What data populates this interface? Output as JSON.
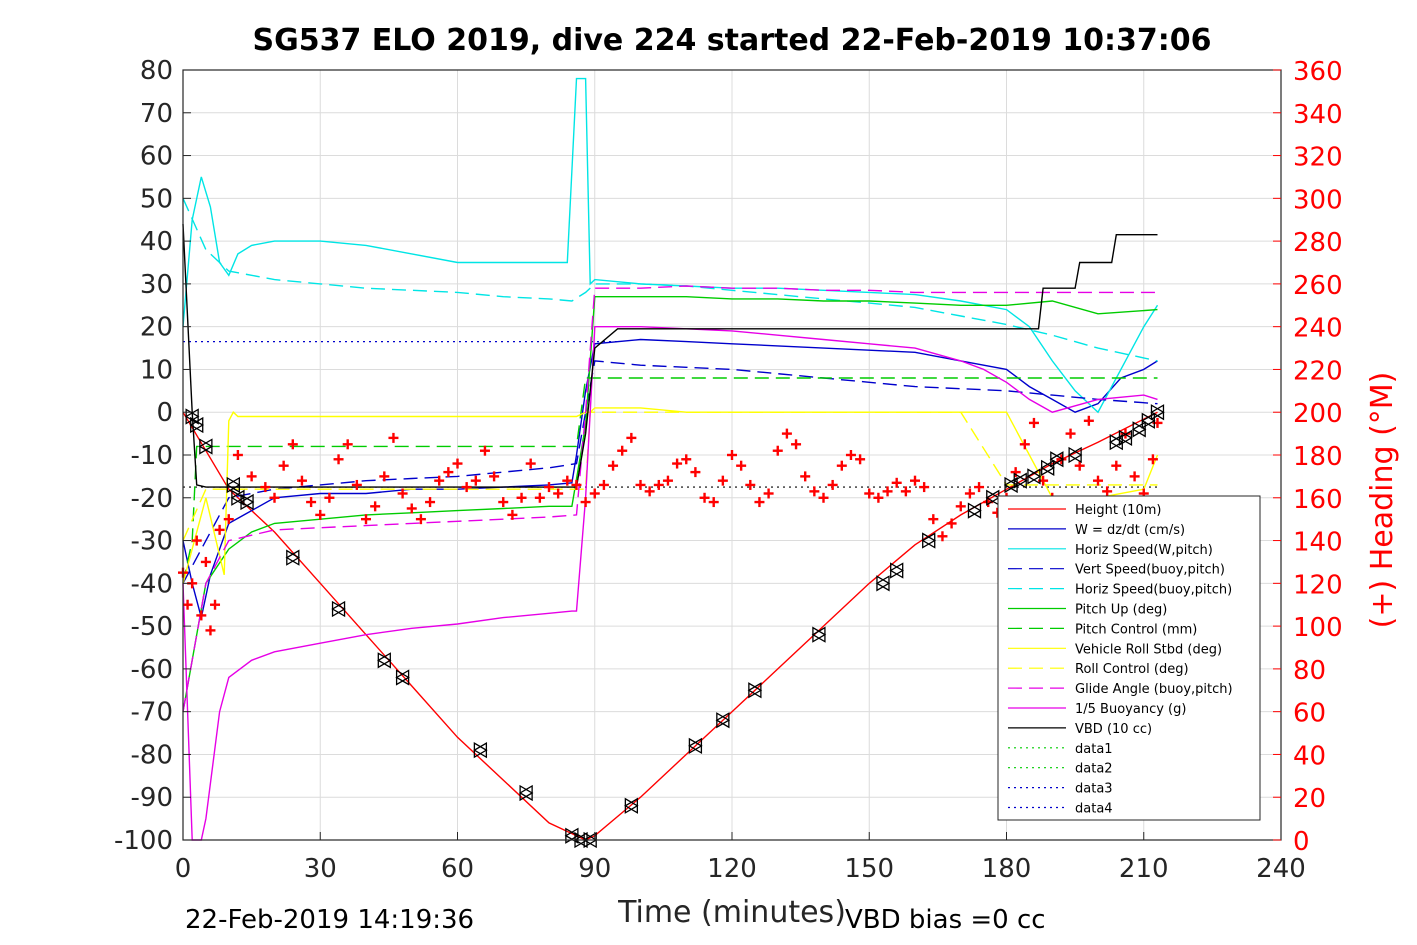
{
  "chart_data": {
    "type": "line",
    "title": "SG537 ELO 2019, dive 224 started 22-Feb-2019 10:37:06",
    "xlabel": "Time (minutes)",
    "ylabel": "",
    "ylabel_right": "(+) Heading (°M)",
    "xlim": [
      0,
      240
    ],
    "ylim": [
      -100,
      80
    ],
    "ylim_right": [
      0,
      360
    ],
    "x_ticks": [
      0,
      30,
      60,
      90,
      120,
      150,
      180,
      210,
      240
    ],
    "y_ticks": [
      80,
      70,
      60,
      50,
      40,
      30,
      20,
      10,
      0,
      -10,
      -20,
      -30,
      -40,
      -50,
      -60,
      -70,
      -80,
      -90,
      -100
    ],
    "y_ticks_right": [
      360,
      340,
      320,
      300,
      280,
      260,
      240,
      220,
      200,
      180,
      160,
      140,
      120,
      100,
      80,
      60,
      40,
      20,
      0
    ],
    "grid": true,
    "legend_position": "bottom-right",
    "footer_left": "22-Feb-2019 14:19:36",
    "footer_right": "VBD bias =0 cc",
    "series": [
      {
        "name": "Height (10m)",
        "color": "#ff0000",
        "dash": "solid",
        "x": [
          0,
          10,
          20,
          30,
          40,
          50,
          60,
          70,
          80,
          86,
          88,
          90,
          100,
          110,
          120,
          130,
          140,
          150,
          160,
          170,
          180,
          190,
          200,
          213
        ],
        "y": [
          0,
          -18,
          -28,
          -40,
          -52,
          -64,
          -76,
          -86,
          -96,
          -99,
          -100,
          -99,
          -90,
          -80,
          -70,
          -60,
          -50,
          -40,
          -31,
          -24,
          -18,
          -12,
          -7,
          0
        ]
      },
      {
        "name": "W = dz/dt (cm/s)",
        "color": "#0000cc",
        "dash": "solid",
        "x": [
          0,
          2,
          4,
          6,
          10,
          15,
          20,
          30,
          40,
          50,
          60,
          70,
          80,
          85,
          86,
          88,
          90,
          100,
          110,
          120,
          130,
          140,
          150,
          160,
          170,
          180,
          185,
          190,
          195,
          200,
          205,
          210,
          213
        ],
        "y": [
          -30,
          -40,
          -48,
          -38,
          -26,
          -23,
          -20,
          -19,
          -19,
          -18,
          -18,
          -17.5,
          -17,
          -16.5,
          -10,
          5,
          16,
          17,
          16.5,
          16,
          15.5,
          15,
          14.5,
          14,
          12,
          10,
          6,
          3,
          0,
          2,
          8,
          10,
          12
        ]
      },
      {
        "name": "Horiz Speed(W,pitch)",
        "color": "#00e5e5",
        "dash": "solid",
        "x": [
          0,
          2,
          4,
          6,
          8,
          10,
          12,
          15,
          20,
          30,
          40,
          50,
          60,
          70,
          80,
          84,
          86,
          88,
          89,
          90,
          100,
          110,
          120,
          130,
          140,
          150,
          160,
          170,
          180,
          185,
          190,
          195,
          200,
          205,
          210,
          213
        ],
        "y": [
          20,
          45,
          55,
          48,
          35,
          32,
          37,
          39,
          40,
          40,
          39,
          37,
          35,
          35,
          35,
          35,
          78,
          78,
          30,
          31,
          30,
          29.5,
          29,
          29,
          28.5,
          28,
          27.5,
          26,
          24,
          20,
          12,
          5,
          0,
          10,
          20,
          25
        ]
      },
      {
        "name": "Vert Speed(buoy,pitch)",
        "color": "#0000cc",
        "dash": "dash",
        "x": [
          0,
          10,
          20,
          30,
          40,
          50,
          60,
          70,
          80,
          86,
          88,
          90,
          100,
          110,
          120,
          130,
          140,
          150,
          160,
          170,
          180,
          190,
          200,
          213
        ],
        "y": [
          -40,
          -20,
          -18,
          -17,
          -16,
          -15.5,
          -15,
          -14,
          -13,
          -12,
          0,
          12,
          11,
          10.5,
          10,
          9,
          8,
          7,
          6,
          5.5,
          5,
          4,
          3,
          2
        ]
      },
      {
        "name": "Horiz Speed(buoy,pitch)",
        "color": "#00e5e5",
        "dash": "dash",
        "x": [
          0,
          5,
          10,
          15,
          20,
          30,
          40,
          50,
          60,
          70,
          80,
          85,
          88,
          90,
          100,
          110,
          120,
          130,
          140,
          150,
          160,
          170,
          180,
          190,
          200,
          213
        ],
        "y": [
          50,
          38,
          33,
          32,
          31,
          30,
          29,
          28.5,
          28,
          27,
          26.5,
          26,
          28,
          30,
          30,
          29.5,
          28.5,
          27.5,
          26.5,
          25.5,
          24.5,
          22.5,
          20.5,
          18,
          15,
          12
        ]
      },
      {
        "name": "Pitch Up (deg)",
        "color": "#00cc00",
        "dash": "solid",
        "x": [
          0,
          5,
          10,
          15,
          20,
          30,
          40,
          50,
          60,
          70,
          80,
          85,
          88,
          90,
          100,
          110,
          120,
          130,
          140,
          150,
          160,
          170,
          180,
          190,
          200,
          213
        ],
        "y": [
          -70,
          -40,
          -32,
          -28,
          -26,
          -25,
          -24,
          -23.5,
          -23,
          -22.5,
          -22,
          -22,
          -3,
          27,
          27,
          27,
          26.5,
          26.5,
          26,
          26,
          25.5,
          25,
          25,
          26,
          23,
          24
        ]
      },
      {
        "name": "Pitch Control (mm)",
        "color": "#00cc00",
        "dash": "dash",
        "x": [
          0,
          2,
          3,
          5,
          85,
          86,
          88,
          89,
          90,
          213
        ],
        "y": [
          -40,
          -30,
          -8,
          -8,
          -8,
          -8,
          8,
          8,
          8,
          8
        ]
      },
      {
        "name": "Vehicle Roll Stbd (deg)",
        "color": "#ffff00",
        "dash": "solid",
        "x": [
          0,
          5,
          9,
          10,
          11,
          12,
          20,
          30,
          40,
          50,
          60,
          70,
          80,
          86,
          88,
          89,
          90,
          100,
          110,
          120,
          130,
          140,
          150,
          160,
          170,
          180,
          190,
          200,
          210,
          213
        ],
        "y": [
          -40,
          -20,
          -38,
          -2,
          0,
          -1,
          -1,
          -1,
          -1,
          -1,
          -1,
          -1,
          -1,
          -1,
          0,
          0,
          1,
          1,
          0,
          0,
          0,
          0,
          0,
          0,
          0,
          0,
          -20,
          -20,
          -18,
          -10
        ]
      },
      {
        "name": "Roll Control (deg)",
        "color": "#ffff00",
        "dash": "dash",
        "x": [
          0,
          5,
          10,
          20,
          30,
          40,
          50,
          60,
          70,
          80,
          86,
          88,
          89,
          90,
          100,
          110,
          120,
          130,
          140,
          150,
          160,
          170,
          180,
          190,
          200,
          213
        ],
        "y": [
          -30,
          -18,
          -18,
          -18,
          -18,
          -18,
          -18,
          -18,
          -18,
          -18,
          -18,
          -18,
          0,
          0,
          0,
          0,
          0,
          0,
          0,
          0,
          0,
          0,
          -17,
          -17,
          -17,
          -17
        ]
      },
      {
        "name": "Glide Angle (buoy,pitch)",
        "color": "#e600e6",
        "dash": "dash",
        "x": [
          0,
          5,
          10,
          20,
          30,
          40,
          50,
          60,
          70,
          80,
          86,
          88,
          90,
          100,
          110,
          120,
          130,
          140,
          150,
          160,
          170,
          180,
          190,
          200,
          213
        ],
        "y": [
          -70,
          -40,
          -30,
          -27.5,
          -27,
          -26.5,
          -26,
          -25.5,
          -25,
          -24.5,
          -24,
          0,
          29,
          29,
          29.5,
          29,
          29,
          28.5,
          28.5,
          28,
          28,
          28,
          28,
          28,
          28
        ]
      },
      {
        "name": "1/5 Buoyancy (g)",
        "color": "#e600e6",
        "dash": "solid",
        "x": [
          0,
          2,
          4,
          5,
          8,
          10,
          15,
          20,
          30,
          40,
          50,
          60,
          70,
          80,
          85,
          86,
          88,
          90,
          100,
          110,
          120,
          130,
          140,
          150,
          160,
          170,
          175,
          180,
          185,
          190,
          200,
          210,
          213
        ],
        "y": [
          -40,
          -100,
          -100,
          -95,
          -70,
          -62,
          -58,
          -56,
          -54,
          -52,
          -50.5,
          -49.5,
          -48,
          -47,
          -46.5,
          -46.5,
          -20,
          20,
          20,
          19.5,
          19,
          18,
          17,
          16,
          15,
          12,
          10,
          7,
          3,
          0,
          3,
          4,
          3
        ]
      },
      {
        "name": "VBD (10 cc)",
        "color": "#000000",
        "dash": "solid",
        "x": [
          0,
          2,
          3,
          5,
          86,
          88,
          90,
          95,
          100,
          180,
          187,
          188,
          195,
          196,
          203,
          204,
          213
        ],
        "y": [
          44,
          0,
          -17,
          -17.5,
          -17.5,
          -5,
          15,
          19.5,
          19.5,
          19.5,
          19.5,
          29,
          29,
          35,
          35,
          41.5,
          41.5
        ]
      },
      {
        "name": "data1",
        "color": "#00cc00",
        "dash": "dot",
        "x": [],
        "y": []
      },
      {
        "name": "data2",
        "color": "#00cc00",
        "dash": "dot",
        "x": [],
        "y": []
      },
      {
        "name": "data3",
        "color": "#0000cc",
        "dash": "dot",
        "x": [],
        "y": []
      },
      {
        "name": "data4",
        "color": "#0000cc",
        "dash": "dot",
        "x": [],
        "y": []
      }
    ],
    "reference_lines": [
      {
        "color": "#0000cc",
        "dash": "dot",
        "y": 16.5,
        "x": [
          0,
          95
        ]
      },
      {
        "color": "#000000",
        "dash": "dot",
        "y": -17.5,
        "x": [
          0,
          213
        ]
      }
    ],
    "heading": {
      "color": "#ff0000",
      "marker": "+",
      "axis": "right",
      "x": [
        0,
        1,
        2,
        3,
        4,
        5,
        6,
        7,
        8,
        10,
        12,
        15,
        18,
        20,
        22,
        24,
        26,
        28,
        30,
        32,
        34,
        36,
        38,
        40,
        42,
        44,
        46,
        48,
        50,
        52,
        54,
        56,
        58,
        60,
        62,
        64,
        66,
        68,
        70,
        72,
        74,
        76,
        78,
        80,
        82,
        84,
        86,
        88,
        90,
        92,
        94,
        96,
        98,
        100,
        102,
        104,
        106,
        108,
        110,
        112,
        114,
        116,
        118,
        120,
        122,
        124,
        126,
        128,
        130,
        132,
        134,
        136,
        138,
        140,
        142,
        144,
        146,
        148,
        150,
        152,
        154,
        156,
        158,
        160,
        162,
        164,
        166,
        168,
        170,
        172,
        174,
        176,
        178,
        180,
        182,
        184,
        186,
        188,
        190,
        192,
        194,
        196,
        198,
        200,
        202,
        204,
        206,
        208,
        210,
        212,
        213
      ],
      "y": [
        125,
        110,
        120,
        140,
        105,
        130,
        98,
        110,
        145,
        150,
        180,
        170,
        165,
        160,
        175,
        185,
        168,
        158,
        152,
        160,
        178,
        185,
        166,
        150,
        156,
        170,
        188,
        162,
        155,
        150,
        158,
        168,
        172,
        176,
        165,
        168,
        182,
        170,
        158,
        152,
        160,
        176,
        160,
        165,
        162,
        168,
        166,
        158,
        162,
        166,
        175,
        182,
        188,
        166,
        163,
        166,
        168,
        176,
        178,
        172,
        160,
        158,
        168,
        180,
        175,
        166,
        158,
        162,
        182,
        190,
        185,
        170,
        163,
        160,
        166,
        175,
        180,
        178,
        162,
        160,
        163,
        167,
        163,
        168,
        165,
        150,
        142,
        148,
        156,
        162,
        165,
        158,
        153,
        160,
        172,
        185,
        195,
        168,
        160,
        178,
        190,
        175,
        196,
        168,
        163,
        175,
        190,
        170,
        162,
        178,
        195
      ]
    },
    "depth_markers": {
      "color": "#000000",
      "marker": "triangles",
      "x": [
        2,
        3,
        5,
        11,
        12,
        14,
        24,
        34,
        44,
        48,
        65,
        75,
        85,
        87,
        89,
        98,
        112,
        118,
        125,
        139,
        153,
        156,
        163,
        173,
        177,
        181,
        183,
        186,
        189,
        191,
        195,
        204,
        206,
        209,
        211,
        213
      ],
      "y": [
        -1,
        -3,
        -8,
        -17,
        -20,
        -21,
        -34,
        -46,
        -58,
        -62,
        -79,
        -89,
        -99,
        -100,
        -100,
        -92,
        -78,
        -72,
        -65,
        -52,
        -40,
        -37,
        -30,
        -23,
        -20,
        -17,
        -16,
        -15,
        -13,
        -11,
        -10,
        -7,
        -6,
        -4,
        -2,
        0
      ]
    }
  }
}
